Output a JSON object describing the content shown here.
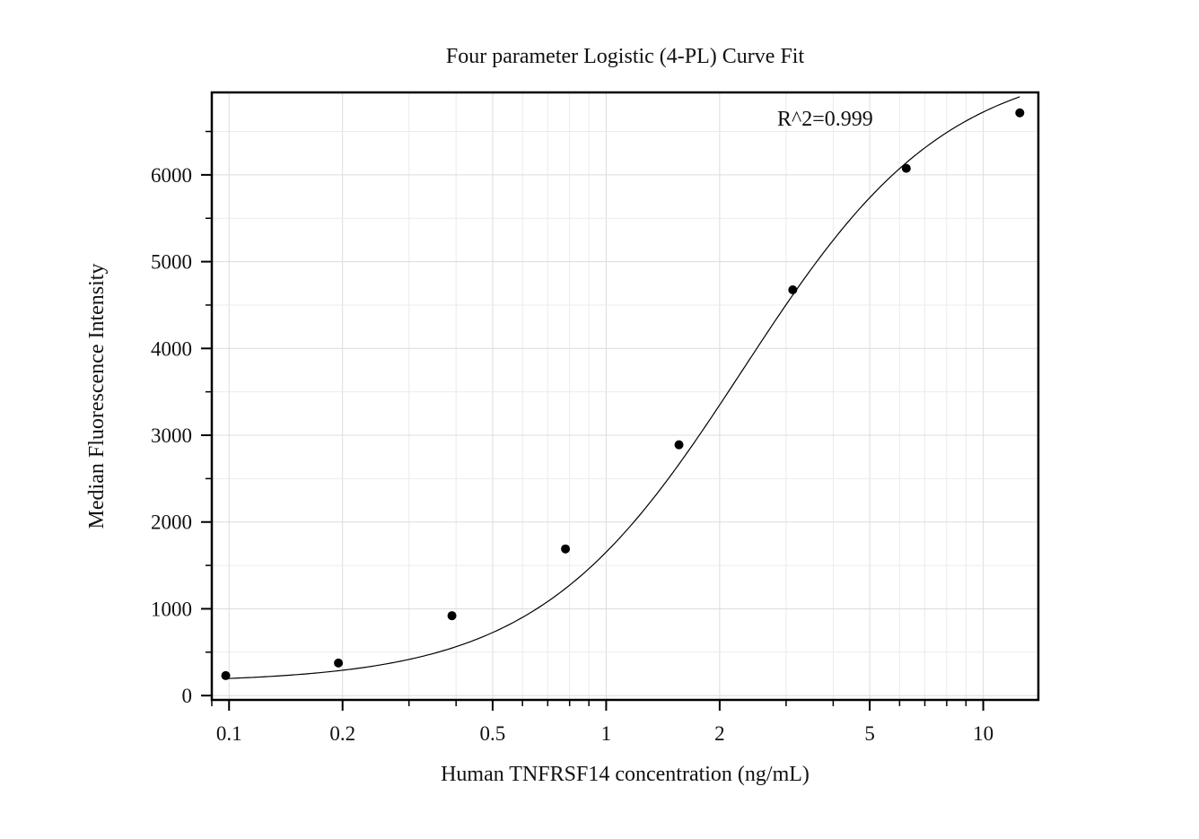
{
  "chart_data": {
    "type": "scatter",
    "title": "Four parameter Logistic (4-PL) Curve Fit",
    "xlabel": "Human TNFRSF14 concentration (ng/mL)",
    "ylabel": "Median Fluorescence Intensity",
    "x_scale": "log",
    "xlim": [
      0.09,
      14
    ],
    "ylim": [
      -50,
      6950
    ],
    "x_ticks": [
      0.1,
      0.2,
      0.5,
      1,
      2,
      5,
      10
    ],
    "x_tick_labels": [
      "0.1",
      "0.2",
      "0.5",
      "1",
      "2",
      "5",
      "10"
    ],
    "y_ticks": [
      0,
      1000,
      2000,
      3000,
      4000,
      5000,
      6000
    ],
    "y_tick_labels": [
      "0",
      "1000",
      "2000",
      "3000",
      "4000",
      "5000",
      "6000"
    ],
    "grid": true,
    "annotation": "R^2=0.999",
    "series": [
      {
        "kind": "points",
        "color": "#000000",
        "x": [
          0.098,
          0.195,
          0.39,
          0.78,
          1.56,
          3.125,
          6.25,
          12.5
        ],
        "y": [
          230,
          375,
          920,
          1690,
          2890,
          4675,
          6075,
          6715
        ]
      },
      {
        "kind": "fit-curve",
        "color": "#000000",
        "model": "4PL",
        "params": {
          "A": 150,
          "D": 7350,
          "C": 2.3,
          "B": 1.6
        }
      }
    ]
  }
}
